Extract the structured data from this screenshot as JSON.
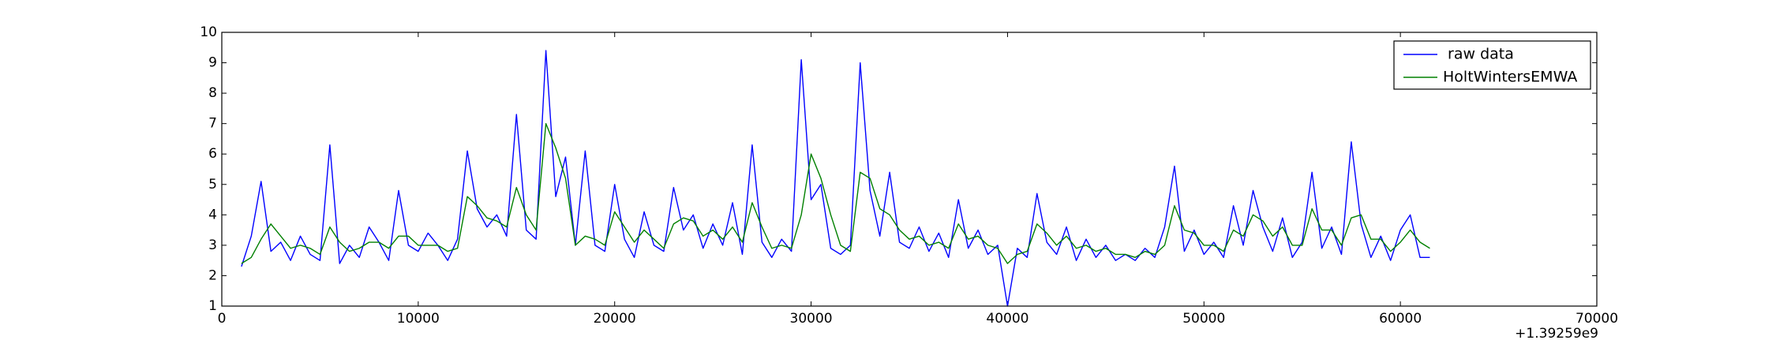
{
  "chart_data": {
    "type": "line",
    "x_offset_label": "+1.39259e9",
    "x": [
      1000,
      1500,
      2000,
      2500,
      3000,
      3500,
      4000,
      4500,
      5000,
      5500,
      6000,
      6500,
      7000,
      7500,
      8000,
      8500,
      9000,
      9500,
      10000,
      10500,
      11000,
      11500,
      12000,
      12500,
      13000,
      13500,
      14000,
      14500,
      15000,
      15500,
      16000,
      16500,
      17000,
      17500,
      18000,
      18500,
      19000,
      19500,
      20000,
      20500,
      21000,
      21500,
      22000,
      22500,
      23000,
      23500,
      24000,
      24500,
      25000,
      25500,
      26000,
      26500,
      27000,
      27500,
      28000,
      28500,
      29000,
      29500,
      30000,
      30500,
      31000,
      31500,
      32000,
      32500,
      33000,
      33500,
      34000,
      34500,
      35000,
      35500,
      36000,
      36500,
      37000,
      37500,
      38000,
      38500,
      39000,
      39500,
      40000,
      40500,
      41000,
      41500,
      42000,
      42500,
      43000,
      43500,
      44000,
      44500,
      45000,
      45500,
      46000,
      46500,
      47000,
      47500,
      48000,
      48500,
      49000,
      49500,
      50000,
      50500,
      51000,
      51500,
      52000,
      52500,
      53000,
      53500,
      54000,
      54500,
      55000,
      55500,
      56000,
      56500,
      57000,
      57500,
      58000,
      58500,
      59000,
      59500,
      60000,
      60500,
      61000,
      61500
    ],
    "series": [
      {
        "name": " raw data",
        "color": "#0000ff",
        "values": [
          2.3,
          3.3,
          5.1,
          2.8,
          3.1,
          2.5,
          3.3,
          2.7,
          2.5,
          6.3,
          2.4,
          3.0,
          2.6,
          3.6,
          3.1,
          2.5,
          4.8,
          3.0,
          2.8,
          3.4,
          3.0,
          2.5,
          3.2,
          6.1,
          4.2,
          3.6,
          4.0,
          3.3,
          7.3,
          3.5,
          3.2,
          9.4,
          4.6,
          5.9,
          3.0,
          6.1,
          3.0,
          2.8,
          5.0,
          3.2,
          2.6,
          4.1,
          3.0,
          2.8,
          4.9,
          3.5,
          4.0,
          2.9,
          3.7,
          3.0,
          4.4,
          2.7,
          6.3,
          3.1,
          2.6,
          3.2,
          2.8,
          9.1,
          4.5,
          5.0,
          2.9,
          2.7,
          3.0,
          9.0,
          4.8,
          3.3,
          5.4,
          3.1,
          2.9,
          3.6,
          2.8,
          3.4,
          2.6,
          4.5,
          2.9,
          3.5,
          2.7,
          3.0,
          1.0,
          2.9,
          2.6,
          4.7,
          3.1,
          2.7,
          3.6,
          2.5,
          3.2,
          2.6,
          3.0,
          2.5,
          2.7,
          2.5,
          2.9,
          2.6,
          3.6,
          5.6,
          2.8,
          3.5,
          2.7,
          3.1,
          2.6,
          4.3,
          3.0,
          4.8,
          3.6,
          2.8,
          3.9,
          2.6,
          3.1,
          5.4,
          2.9,
          3.6,
          2.7,
          6.4,
          3.7,
          2.6,
          3.3,
          2.5,
          3.5,
          4.0,
          2.6,
          2.6
        ]
      },
      {
        "name": "HoltWintersEMWA",
        "color": "#008000",
        "values": [
          2.4,
          2.6,
          3.2,
          3.7,
          3.3,
          2.9,
          3.0,
          2.9,
          2.7,
          3.6,
          3.1,
          2.8,
          2.9,
          3.1,
          3.1,
          2.9,
          3.3,
          3.3,
          3.0,
          3.0,
          3.0,
          2.8,
          2.9,
          4.6,
          4.3,
          3.9,
          3.8,
          3.6,
          4.9,
          4.0,
          3.5,
          7.0,
          6.2,
          5.2,
          3.0,
          3.3,
          3.2,
          3.0,
          4.1,
          3.6,
          3.1,
          3.5,
          3.2,
          2.9,
          3.7,
          3.9,
          3.8,
          3.3,
          3.5,
          3.2,
          3.6,
          3.1,
          4.4,
          3.6,
          2.9,
          3.0,
          2.9,
          4.0,
          6.0,
          5.2,
          4.0,
          3.0,
          2.8,
          5.4,
          5.2,
          4.2,
          4.0,
          3.5,
          3.2,
          3.3,
          3.0,
          3.1,
          2.9,
          3.7,
          3.2,
          3.3,
          3.0,
          2.9,
          2.4,
          2.7,
          2.8,
          3.7,
          3.4,
          3.0,
          3.3,
          2.9,
          3.0,
          2.8,
          2.9,
          2.7,
          2.7,
          2.6,
          2.8,
          2.7,
          3.0,
          4.3,
          3.5,
          3.4,
          3.0,
          3.0,
          2.8,
          3.5,
          3.3,
          4.0,
          3.8,
          3.3,
          3.6,
          3.0,
          3.0,
          4.2,
          3.5,
          3.5,
          3.0,
          3.9,
          4.0,
          3.2,
          3.2,
          2.8,
          3.1,
          3.5,
          3.1,
          2.9
        ]
      }
    ],
    "xlim": [
      0,
      70000
    ],
    "xticks": [
      0,
      10000,
      20000,
      30000,
      40000,
      50000,
      60000,
      70000
    ],
    "ylim": [
      1,
      10
    ],
    "yticks": [
      1,
      2,
      3,
      4,
      5,
      6,
      7,
      8,
      9,
      10
    ],
    "legend": "upper right"
  }
}
